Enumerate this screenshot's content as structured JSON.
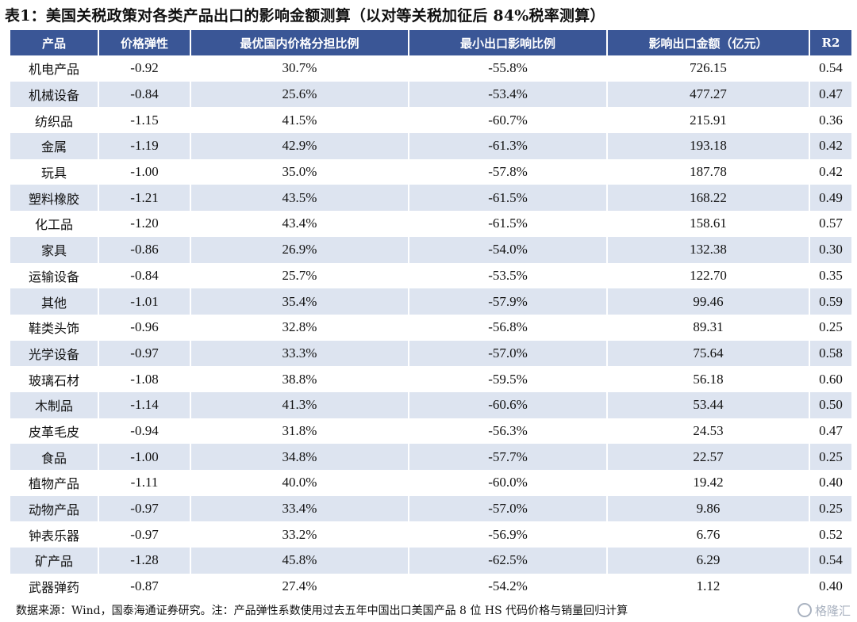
{
  "title": "表1：美国关税政策对各类产品出口的影响金额测算（以对等关税加征后 84%税率测算）",
  "table": {
    "headers": [
      "产品",
      "价格弹性",
      "最优国内价格分担比例",
      "最小出口影响比例",
      "影响出口金额（亿元）",
      "R2"
    ],
    "rows": [
      [
        "机电产品",
        "-0.92",
        "30.7%",
        "-55.8%",
        "726.15",
        "0.54"
      ],
      [
        "机械设备",
        "-0.84",
        "25.6%",
        "-53.4%",
        "477.27",
        "0.47"
      ],
      [
        "纺织品",
        "-1.15",
        "41.5%",
        "-60.7%",
        "215.91",
        "0.36"
      ],
      [
        "金属",
        "-1.19",
        "42.9%",
        "-61.3%",
        "193.18",
        "0.42"
      ],
      [
        "玩具",
        "-1.00",
        "35.0%",
        "-57.8%",
        "187.78",
        "0.42"
      ],
      [
        "塑料橡胶",
        "-1.21",
        "43.5%",
        "-61.5%",
        "168.22",
        "0.49"
      ],
      [
        "化工品",
        "-1.20",
        "43.4%",
        "-61.5%",
        "158.61",
        "0.57"
      ],
      [
        "家具",
        "-0.86",
        "26.9%",
        "-54.0%",
        "132.38",
        "0.30"
      ],
      [
        "运输设备",
        "-0.84",
        "25.7%",
        "-53.5%",
        "122.70",
        "0.35"
      ],
      [
        "其他",
        "-1.01",
        "35.4%",
        "-57.9%",
        "99.46",
        "0.59"
      ],
      [
        "鞋类头饰",
        "-0.96",
        "32.8%",
        "-56.8%",
        "89.31",
        "0.25"
      ],
      [
        "光学设备",
        "-0.97",
        "33.3%",
        "-57.0%",
        "75.64",
        "0.58"
      ],
      [
        "玻璃石材",
        "-1.08",
        "38.8%",
        "-59.5%",
        "56.18",
        "0.60"
      ],
      [
        "木制品",
        "-1.14",
        "41.3%",
        "-60.6%",
        "53.44",
        "0.50"
      ],
      [
        "皮革毛皮",
        "-0.94",
        "31.8%",
        "-56.3%",
        "24.53",
        "0.47"
      ],
      [
        "食品",
        "-1.00",
        "34.8%",
        "-57.7%",
        "22.57",
        "0.25"
      ],
      [
        "植物产品",
        "-1.11",
        "40.0%",
        "-60.0%",
        "19.42",
        "0.40"
      ],
      [
        "动物产品",
        "-0.97",
        "33.4%",
        "-57.0%",
        "9.86",
        "0.25"
      ],
      [
        "钟表乐器",
        "-0.97",
        "33.2%",
        "-56.9%",
        "6.76",
        "0.52"
      ],
      [
        "矿产品",
        "-1.28",
        "45.8%",
        "-62.5%",
        "6.29",
        "0.54"
      ],
      [
        "武器弹药",
        "-0.87",
        "27.4%",
        "-54.2%",
        "1.12",
        "0.40"
      ]
    ]
  },
  "source": "数据来源：Wind，国泰海通证券研究。注：产品弹性系数使用过去五年中国出口美国产品 8 位 HS 代码价格与销量回归计算",
  "watermark": "格隆汇",
  "colors": {
    "header_bg": "#3a5696",
    "stripe": "#dde4f0"
  }
}
